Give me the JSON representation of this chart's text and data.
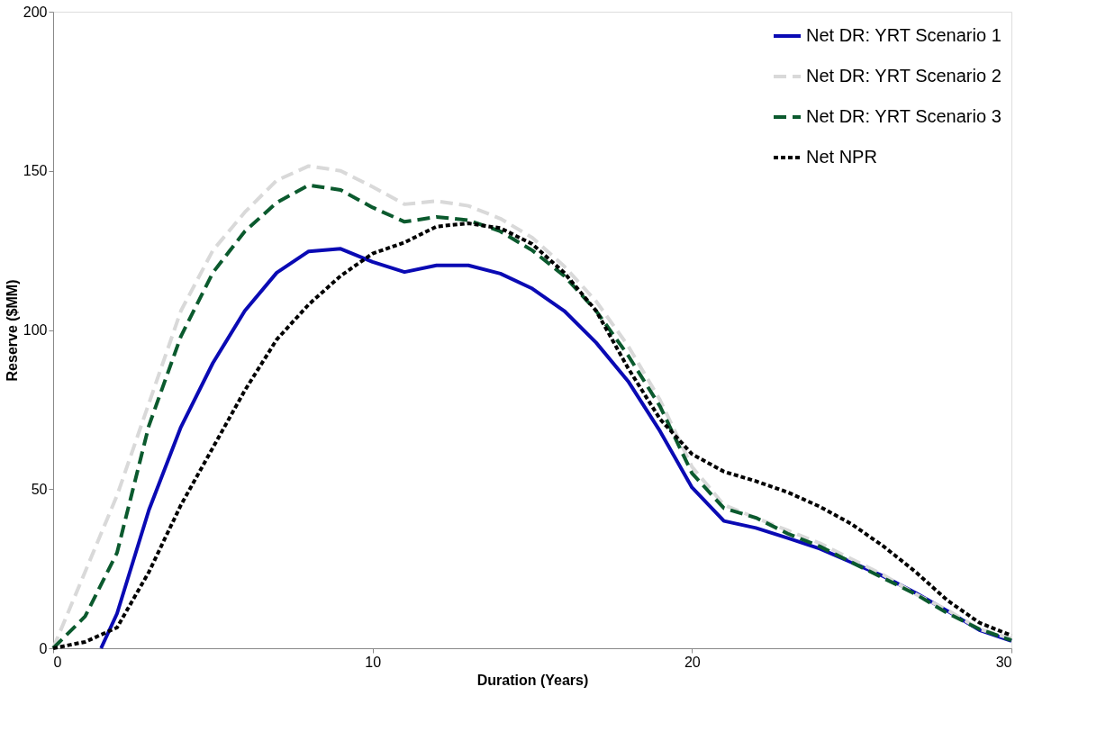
{
  "chart_data": {
    "type": "line",
    "xlabel": "Duration (Years)",
    "ylabel": "Reserve ($MM)",
    "xlim": [
      0,
      30
    ],
    "xticks": [
      0,
      10,
      20,
      30
    ],
    "ylim": [
      0,
      200
    ],
    "yticks": [
      0,
      50,
      100,
      150,
      200
    ],
    "grid": false,
    "legend": "top right",
    "marker": "none",
    "series": [
      {
        "name": "Net DR: YRT Scenario 1",
        "color": "#0a0ab4",
        "line_style": "solid",
        "x": [
          1.5,
          2,
          3,
          4,
          5,
          6,
          7,
          8,
          9,
          10,
          11,
          12,
          13,
          14,
          15,
          16,
          17,
          18,
          19,
          20,
          21,
          22,
          23,
          24,
          25,
          26,
          27,
          28,
          29,
          30
        ],
        "values": [
          0,
          10.9,
          43.5,
          69.5,
          89.6,
          106,
          118,
          124.7,
          125.5,
          121.4,
          118.2,
          120.3,
          120.3,
          117.7,
          113,
          106,
          96,
          83.9,
          68.2,
          50.5,
          40,
          37.8,
          34.6,
          31.3,
          27,
          22.6,
          17.4,
          11.7,
          5.7,
          2.3
        ]
      },
      {
        "name": "Net DR: YRT Scenario 2",
        "color": "#d9d9d9",
        "line_style": "dashed",
        "x": [
          0,
          1,
          2,
          3,
          4,
          5,
          6,
          7,
          8,
          9,
          10,
          11,
          12,
          13,
          14,
          15,
          16,
          17,
          18,
          19,
          20,
          21,
          22,
          23,
          24,
          25,
          26,
          27,
          28,
          29,
          30
        ],
        "values": [
          0,
          24,
          48,
          77,
          106,
          125,
          137,
          147,
          151.5,
          150,
          145,
          139.5,
          140.5,
          139,
          135,
          129,
          120,
          109,
          95,
          78,
          57,
          45,
          41,
          37,
          33,
          28,
          23,
          17,
          12,
          6,
          3
        ]
      },
      {
        "name": "Net DR: YRT Scenario 3",
        "color": "#0b5a2e",
        "line_style": "dashed",
        "x": [
          0,
          1,
          2,
          3,
          4,
          5,
          6,
          7,
          8,
          9,
          10,
          11,
          12,
          13,
          14,
          15,
          16,
          17,
          18,
          19,
          20,
          21,
          22,
          23,
          24,
          25,
          26,
          27,
          28,
          29,
          30
        ],
        "values": [
          0,
          10,
          30,
          70,
          98,
          118,
          131,
          140,
          145.5,
          144,
          138.5,
          134,
          135.5,
          134.5,
          131,
          125,
          117,
          106,
          92,
          76,
          55,
          44,
          41,
          36,
          32,
          27,
          22,
          17,
          11,
          6,
          2.5
        ]
      },
      {
        "name": "Net NPR",
        "color": "#000000",
        "line_style": "dotted",
        "x": [
          0,
          1,
          2,
          3,
          4,
          5,
          6,
          7,
          8,
          9,
          10,
          11,
          12,
          13,
          14,
          15,
          16,
          17,
          18,
          19,
          20,
          21,
          22,
          23,
          24,
          25,
          26,
          27,
          28,
          29,
          30
        ],
        "values": [
          0,
          2,
          6.5,
          24,
          45,
          63,
          81,
          97,
          108,
          117,
          124,
          127.5,
          132.5,
          133.5,
          132,
          127,
          118,
          106,
          88,
          72,
          61,
          55.5,
          52.5,
          49,
          44.5,
          39,
          32,
          24,
          15,
          8,
          4
        ]
      }
    ]
  }
}
